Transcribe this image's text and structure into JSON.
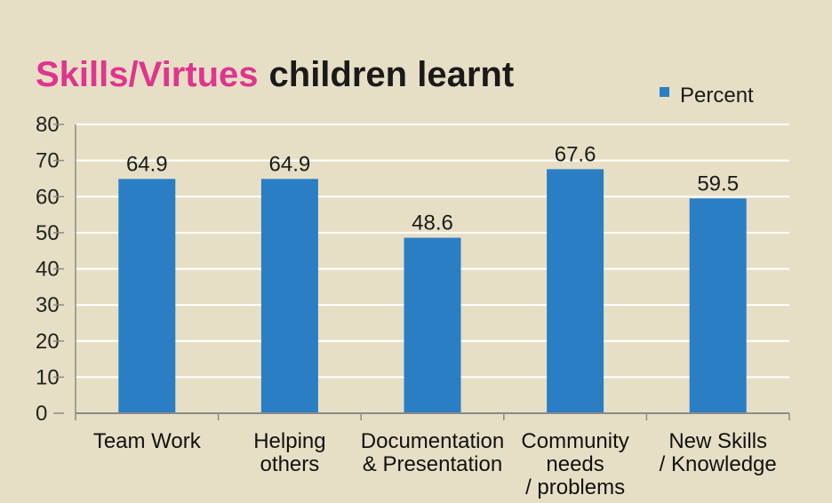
{
  "title": {
    "highlight": "Skills/Virtues",
    "rest": "children learnt"
  },
  "colors": {
    "background": "#e6dfc5",
    "bar": "#2a7ec4",
    "title_highlight": "#e0348e",
    "gridline": "#ffffff",
    "axis": "#8a8a8a"
  },
  "chart_data": {
    "type": "bar",
    "title": "Skills/Virtues children learnt",
    "categories": [
      [
        "Team Work"
      ],
      [
        "Helping",
        "others"
      ],
      [
        "Documentation",
        "& Presentation"
      ],
      [
        "Community",
        "needs",
        "/ problems"
      ],
      [
        "New Skills",
        "/ Knowledge"
      ]
    ],
    "series": [
      {
        "name": "Percent",
        "values": [
          64.9,
          64.9,
          48.6,
          67.6,
          59.5
        ]
      }
    ],
    "data_labels": [
      "64.9",
      "64.9",
      "48.6",
      "67.6",
      "59.5"
    ],
    "xlabel": "",
    "ylabel": "",
    "ylim": [
      0,
      80
    ],
    "yticks": [
      0,
      10,
      20,
      30,
      40,
      50,
      60,
      70,
      80
    ],
    "grid": true,
    "legend_position": "top-right"
  }
}
